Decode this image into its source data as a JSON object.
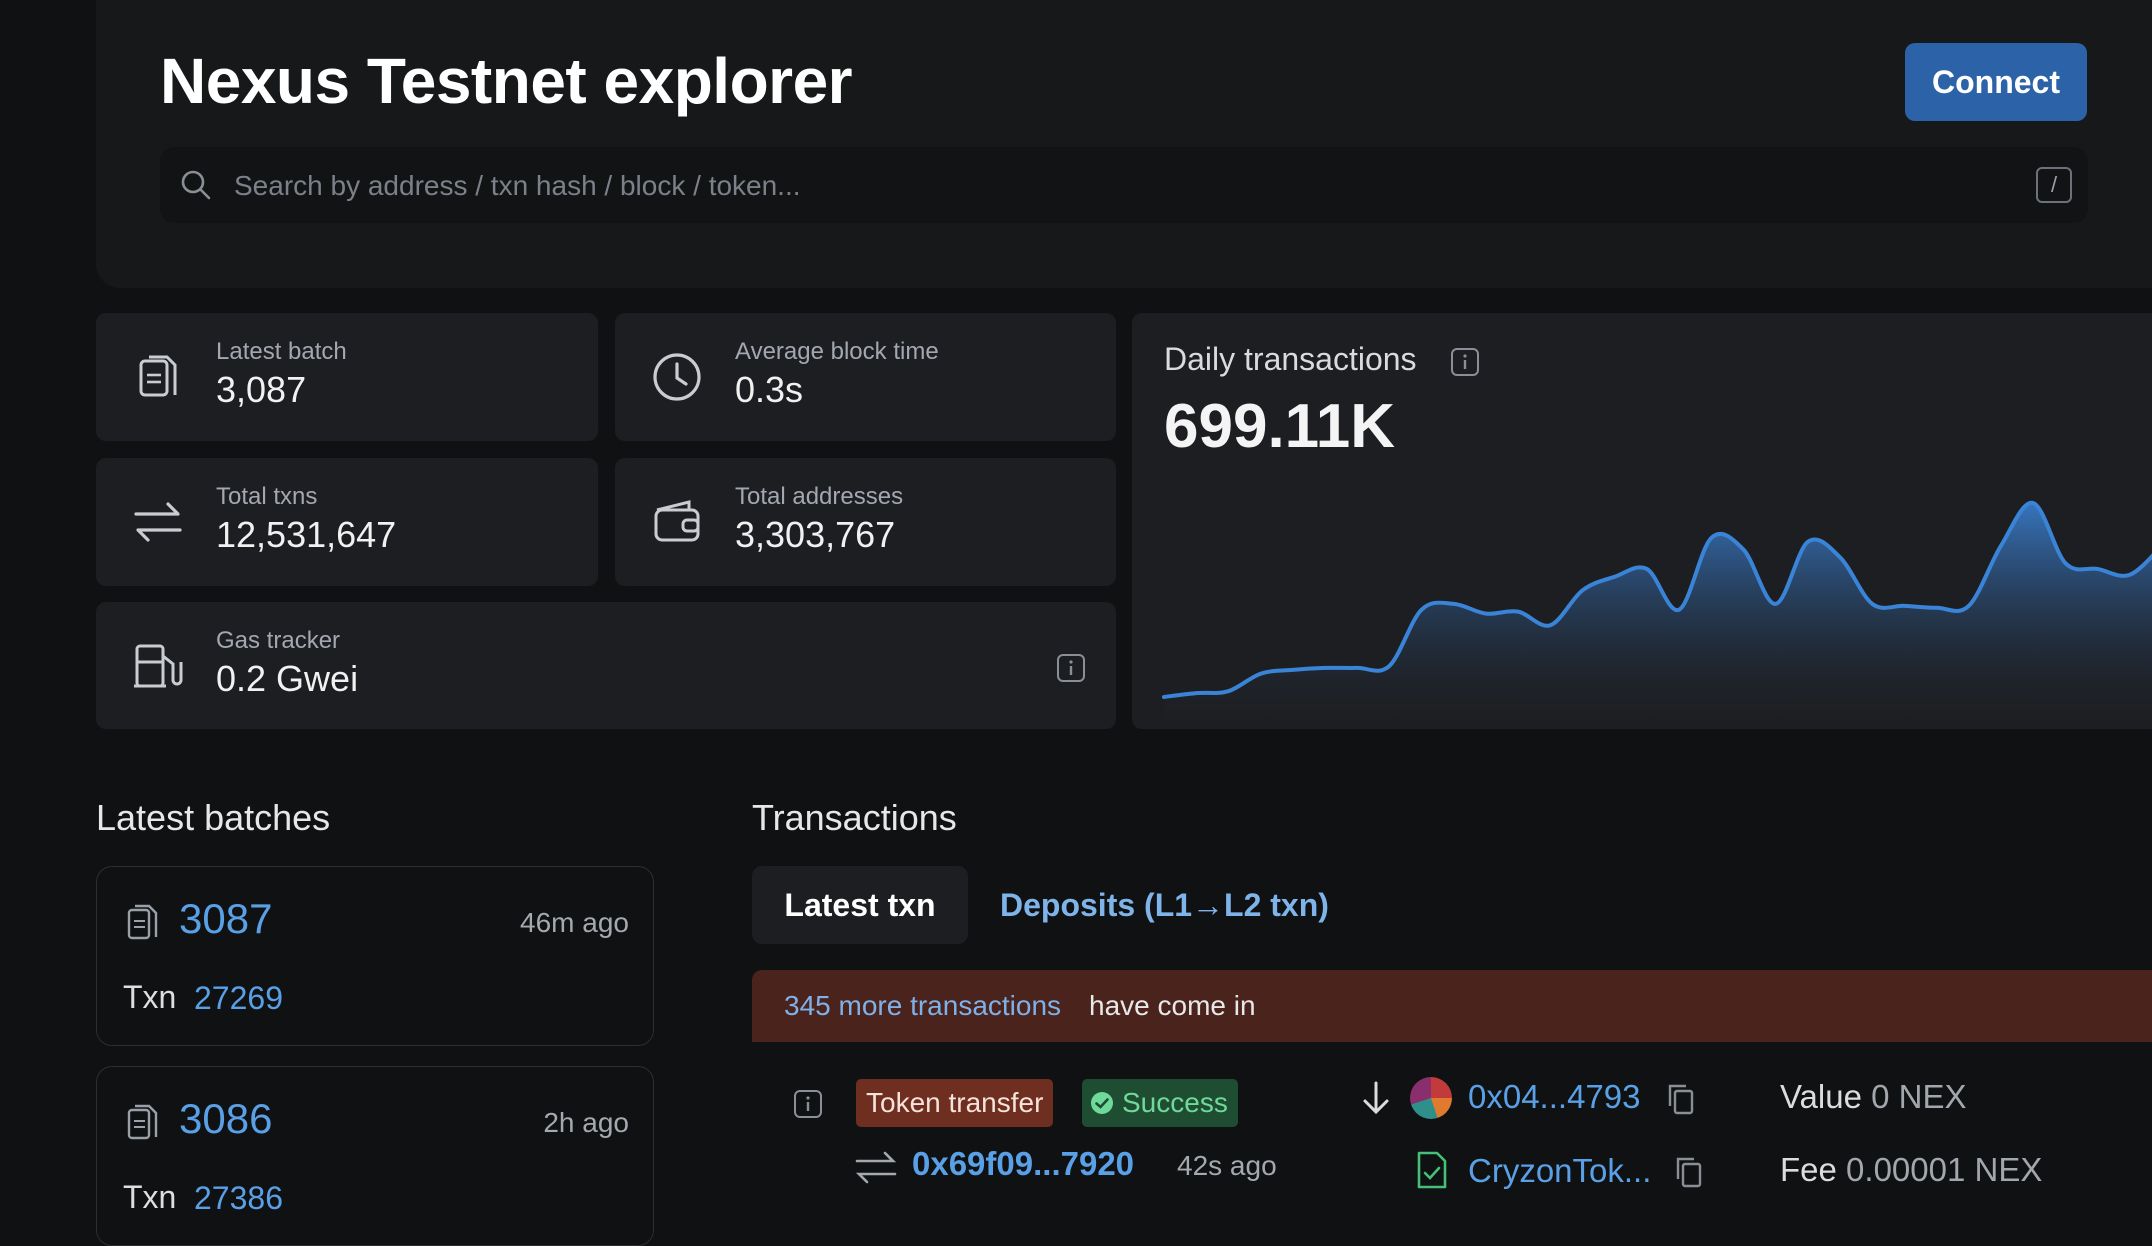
{
  "header": {
    "title": "Nexus Testnet explorer",
    "connect_label": "Connect",
    "search_placeholder": "Search by address / txn hash / block / token...",
    "search_shortcut": "/"
  },
  "stats": {
    "latest_batch": {
      "label": "Latest batch",
      "value": "3,087"
    },
    "avg_block_time": {
      "label": "Average block time",
      "value": "0.3s"
    },
    "total_txns": {
      "label": "Total txns",
      "value": "12,531,647"
    },
    "total_addresses": {
      "label": "Total addresses",
      "value": "3,303,767"
    },
    "gas_tracker": {
      "label": "Gas tracker",
      "value": "0.2 Gwei"
    }
  },
  "daily": {
    "title": "Daily transactions",
    "value": "699.11K"
  },
  "chart_data": {
    "type": "area",
    "title": "Daily transactions",
    "values": [
      0.0,
      0.02,
      0.03,
      0.12,
      0.14,
      0.15,
      0.15,
      0.16,
      0.45,
      0.48,
      0.43,
      0.44,
      0.37,
      0.55,
      0.62,
      0.66,
      0.45,
      0.82,
      0.76,
      0.48,
      0.8,
      0.72,
      0.48,
      0.47,
      0.46,
      0.47,
      0.78,
      1.0,
      0.69,
      0.66,
      0.63,
      0.78
    ],
    "grid": false
  },
  "latest_batches": {
    "title": "Latest batches",
    "items": [
      {
        "number": "3087",
        "age": "46m ago",
        "txn_label": "Txn",
        "txn_count": "27269"
      },
      {
        "number": "3086",
        "age": "2h ago",
        "txn_label": "Txn",
        "txn_count": "27386"
      }
    ]
  },
  "transactions": {
    "title": "Transactions",
    "tabs": [
      "Latest txn",
      "Deposits (L1→L2 txn)"
    ],
    "banner_link": "345 more transactions",
    "banner_text": "have come in",
    "rows": [
      {
        "type_tag": "Token transfer",
        "status": "Success",
        "hash": "0x69f09...7920",
        "age": "42s ago",
        "from": "0x04...4793",
        "contract": "CryzonTok...",
        "value_label": "Value",
        "value": "0 NEX",
        "fee_label": "Fee",
        "fee": "0.00001 NEX"
      }
    ]
  },
  "colors": {
    "accent": "#2b62a8",
    "link": "#5aa0e6",
    "success": "#6fd99a",
    "banner": "#4a231d"
  }
}
